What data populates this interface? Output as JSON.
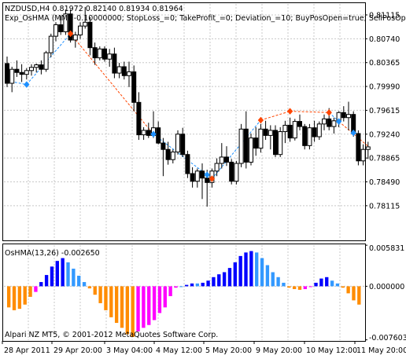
{
  "header": {
    "line1": "NZDUSD,H4  0.81972 0.82140 0.81934 0.81964",
    "line2": "Exp_OsHMA (MM=-0.10000000; StopLoss_=0; TakeProfit_=0; Deviation_=10; BuyPosOpen=true; SellPosOp"
  },
  "sub": {
    "title": "OsHMA(13,26) -0.002650"
  },
  "footer": {
    "copyright": "Alpari NZ MT5, © 2001-2012 MetaQuotes Software Corp."
  },
  "colors": {
    "bull": "#ffffff",
    "bear": "#000000",
    "grid": "#c8c8c8",
    "buy_arrow": "#1e90ff",
    "sell_arrow": "#ff4500",
    "trend_line": "#1e90ff",
    "trend_line_down": "#ff4500",
    "hist_orange": "#ff8c00",
    "hist_magenta": "#ff00ff",
    "hist_blue": "#0000ff",
    "hist_lightblue": "#3399ff"
  },
  "chart_data": [
    {
      "type": "candlestick",
      "ylim": [
        0.7757,
        0.813
      ],
      "y_ticks": [
        "0.81115",
        "0.80740",
        "0.80365",
        "0.79990",
        "0.79615",
        "0.79240",
        "0.78865",
        "0.78490",
        "0.78115"
      ],
      "y_tick_values": [
        0.81115,
        0.8074,
        0.80365,
        0.7999,
        0.79615,
        0.7924,
        0.78865,
        0.7849,
        0.78115
      ],
      "x_ticks": [
        "28 Apr 2011",
        "29 Apr 20:00",
        "3 May 04:00",
        "4 May 12:00",
        "5 May 20:00",
        "9 May 20:00",
        "10 May 12:00",
        "11 May 20:00"
      ],
      "candles": [
        {
          "o": 0.8035,
          "h": 0.8046,
          "l": 0.7998,
          "c": 0.8004
        },
        {
          "o": 0.8004,
          "h": 0.803,
          "l": 0.799,
          "c": 0.8026
        },
        {
          "o": 0.8026,
          "h": 0.804,
          "l": 0.8014,
          "c": 0.8021
        },
        {
          "o": 0.8021,
          "h": 0.8034,
          "l": 0.8006,
          "c": 0.8018
        },
        {
          "o": 0.8018,
          "h": 0.8028,
          "l": 0.801,
          "c": 0.8024
        },
        {
          "o": 0.8024,
          "h": 0.8034,
          "l": 0.8016,
          "c": 0.8029
        },
        {
          "o": 0.8029,
          "h": 0.8035,
          "l": 0.8021,
          "c": 0.8033
        },
        {
          "o": 0.8033,
          "h": 0.804,
          "l": 0.8018,
          "c": 0.8026
        },
        {
          "o": 0.8026,
          "h": 0.8055,
          "l": 0.8022,
          "c": 0.8052
        },
        {
          "o": 0.8052,
          "h": 0.8082,
          "l": 0.8045,
          "c": 0.8078
        },
        {
          "o": 0.8078,
          "h": 0.81,
          "l": 0.807,
          "c": 0.8096
        },
        {
          "o": 0.8096,
          "h": 0.811,
          "l": 0.808,
          "c": 0.8085
        },
        {
          "o": 0.8085,
          "h": 0.812,
          "l": 0.808,
          "c": 0.8113
        },
        {
          "o": 0.8113,
          "h": 0.812,
          "l": 0.8068,
          "c": 0.8072
        },
        {
          "o": 0.8072,
          "h": 0.8085,
          "l": 0.806,
          "c": 0.808
        },
        {
          "o": 0.808,
          "h": 0.81,
          "l": 0.8074,
          "c": 0.8094
        },
        {
          "o": 0.8094,
          "h": 0.8124,
          "l": 0.809,
          "c": 0.81
        },
        {
          "o": 0.81,
          "h": 0.8108,
          "l": 0.8048,
          "c": 0.806
        },
        {
          "o": 0.806,
          "h": 0.8068,
          "l": 0.8033,
          "c": 0.8044
        },
        {
          "o": 0.8044,
          "h": 0.8062,
          "l": 0.804,
          "c": 0.8058
        },
        {
          "o": 0.8058,
          "h": 0.8062,
          "l": 0.8038,
          "c": 0.8042
        },
        {
          "o": 0.8042,
          "h": 0.8058,
          "l": 0.803,
          "c": 0.805
        },
        {
          "o": 0.805,
          "h": 0.806,
          "l": 0.8012,
          "c": 0.802
        },
        {
          "o": 0.802,
          "h": 0.8036,
          "l": 0.8012,
          "c": 0.803
        },
        {
          "o": 0.803,
          "h": 0.8038,
          "l": 0.801,
          "c": 0.8016
        },
        {
          "o": 0.8016,
          "h": 0.8038,
          "l": 0.7998,
          "c": 0.8022
        },
        {
          "o": 0.8022,
          "h": 0.8032,
          "l": 0.796,
          "c": 0.7974
        },
        {
          "o": 0.7974,
          "h": 0.799,
          "l": 0.7915,
          "c": 0.7923
        },
        {
          "o": 0.7923,
          "h": 0.7935,
          "l": 0.7915,
          "c": 0.793
        },
        {
          "o": 0.793,
          "h": 0.7942,
          "l": 0.7918,
          "c": 0.7922
        },
        {
          "o": 0.7922,
          "h": 0.796,
          "l": 0.7918,
          "c": 0.7934
        },
        {
          "o": 0.7934,
          "h": 0.7944,
          "l": 0.7908,
          "c": 0.791
        },
        {
          "o": 0.791,
          "h": 0.7918,
          "l": 0.7858,
          "c": 0.79
        },
        {
          "o": 0.79,
          "h": 0.7912,
          "l": 0.7876,
          "c": 0.7884
        },
        {
          "o": 0.7884,
          "h": 0.79,
          "l": 0.7878,
          "c": 0.7896
        },
        {
          "o": 0.7896,
          "h": 0.793,
          "l": 0.7892,
          "c": 0.7924
        },
        {
          "o": 0.7924,
          "h": 0.7934,
          "l": 0.7888,
          "c": 0.7892
        },
        {
          "o": 0.7892,
          "h": 0.7898,
          "l": 0.7855,
          "c": 0.7862
        },
        {
          "o": 0.7862,
          "h": 0.7872,
          "l": 0.784,
          "c": 0.785
        },
        {
          "o": 0.785,
          "h": 0.787,
          "l": 0.784,
          "c": 0.7866
        },
        {
          "o": 0.7866,
          "h": 0.7878,
          "l": 0.7822,
          "c": 0.7855
        },
        {
          "o": 0.7855,
          "h": 0.7868,
          "l": 0.781,
          "c": 0.7848
        },
        {
          "o": 0.7848,
          "h": 0.787,
          "l": 0.784,
          "c": 0.7866
        },
        {
          "o": 0.7866,
          "h": 0.7886,
          "l": 0.7858,
          "c": 0.7878
        },
        {
          "o": 0.7878,
          "h": 0.791,
          "l": 0.787,
          "c": 0.7888
        },
        {
          "o": 0.7888,
          "h": 0.7905,
          "l": 0.7874,
          "c": 0.788
        },
        {
          "o": 0.788,
          "h": 0.7885,
          "l": 0.7845,
          "c": 0.785
        },
        {
          "o": 0.785,
          "h": 0.7882,
          "l": 0.7845,
          "c": 0.7878
        },
        {
          "o": 0.7878,
          "h": 0.794,
          "l": 0.7872,
          "c": 0.7932
        },
        {
          "o": 0.7932,
          "h": 0.796,
          "l": 0.787,
          "c": 0.788
        },
        {
          "o": 0.788,
          "h": 0.7925,
          "l": 0.7875,
          "c": 0.7918
        },
        {
          "o": 0.7918,
          "h": 0.7935,
          "l": 0.789,
          "c": 0.7902
        },
        {
          "o": 0.7902,
          "h": 0.794,
          "l": 0.7895,
          "c": 0.7932
        },
        {
          "o": 0.7932,
          "h": 0.7945,
          "l": 0.7915,
          "c": 0.7922
        },
        {
          "o": 0.7922,
          "h": 0.7938,
          "l": 0.79,
          "c": 0.793
        },
        {
          "o": 0.793,
          "h": 0.7938,
          "l": 0.7888,
          "c": 0.7892
        },
        {
          "o": 0.7892,
          "h": 0.7935,
          "l": 0.7888,
          "c": 0.7928
        },
        {
          "o": 0.7928,
          "h": 0.7945,
          "l": 0.791,
          "c": 0.7938
        },
        {
          "o": 0.7938,
          "h": 0.795,
          "l": 0.7912,
          "c": 0.7918
        },
        {
          "o": 0.7918,
          "h": 0.7948,
          "l": 0.7914,
          "c": 0.7944
        },
        {
          "o": 0.7944,
          "h": 0.7955,
          "l": 0.793,
          "c": 0.7936
        },
        {
          "o": 0.7936,
          "h": 0.794,
          "l": 0.79,
          "c": 0.7906
        },
        {
          "o": 0.7906,
          "h": 0.794,
          "l": 0.79,
          "c": 0.7934
        },
        {
          "o": 0.7934,
          "h": 0.7945,
          "l": 0.7912,
          "c": 0.792
        },
        {
          "o": 0.792,
          "h": 0.7944,
          "l": 0.7915,
          "c": 0.794
        },
        {
          "o": 0.794,
          "h": 0.7955,
          "l": 0.793,
          "c": 0.7948
        },
        {
          "o": 0.7948,
          "h": 0.7965,
          "l": 0.793,
          "c": 0.7936
        },
        {
          "o": 0.7936,
          "h": 0.795,
          "l": 0.7925,
          "c": 0.7945
        },
        {
          "o": 0.7945,
          "h": 0.796,
          "l": 0.7935,
          "c": 0.7958
        },
        {
          "o": 0.7958,
          "h": 0.7968,
          "l": 0.7944,
          "c": 0.795
        },
        {
          "o": 0.795,
          "h": 0.7975,
          "l": 0.793,
          "c": 0.7955
        },
        {
          "o": 0.7955,
          "h": 0.796,
          "l": 0.792,
          "c": 0.7925
        },
        {
          "o": 0.7925,
          "h": 0.793,
          "l": 0.7875,
          "c": 0.7882
        },
        {
          "o": 0.7882,
          "h": 0.7908,
          "l": 0.7875,
          "c": 0.79
        },
        {
          "o": 0.79,
          "h": 0.7912,
          "l": 0.7885,
          "c": 0.7904
        }
      ],
      "buy_arrows": [
        {
          "index": 4,
          "price": 0.8002
        },
        {
          "index": 30,
          "price": 0.7924
        },
        {
          "index": 41,
          "price": 0.786
        },
        {
          "index": 68,
          "price": 0.7944
        },
        {
          "index": 71,
          "price": 0.7926
        }
      ],
      "sell_arrows": [
        {
          "index": 13,
          "price": 0.8082
        },
        {
          "index": 42,
          "price": 0.7854
        },
        {
          "index": 52,
          "price": 0.7946
        },
        {
          "index": 58,
          "price": 0.796
        },
        {
          "index": 66,
          "price": 0.7958
        }
      ],
      "trend_segments": [
        {
          "from": [
            0,
            0.8008
          ],
          "to": [
            4,
            0.8002
          ],
          "dir": "buy"
        },
        {
          "from": [
            4,
            0.8002
          ],
          "to": [
            13,
            0.8082
          ],
          "dir": "buy"
        },
        {
          "from": [
            13,
            0.8082
          ],
          "to": [
            30,
            0.7924
          ],
          "dir": "sell"
        },
        {
          "from": [
            30,
            0.7924
          ],
          "to": [
            41,
            0.786
          ],
          "dir": "buy"
        },
        {
          "from": [
            41,
            0.786
          ],
          "to": [
            42,
            0.7854
          ],
          "dir": "sell"
        },
        {
          "from": [
            42,
            0.7854
          ],
          "to": [
            52,
            0.7946
          ],
          "dir": "buy"
        },
        {
          "from": [
            52,
            0.7946
          ],
          "to": [
            58,
            0.796
          ],
          "dir": "sell"
        },
        {
          "from": [
            58,
            0.796
          ],
          "to": [
            66,
            0.7958
          ],
          "dir": "sell"
        },
        {
          "from": [
            66,
            0.7958
          ],
          "to": [
            68,
            0.7944
          ],
          "dir": "buy"
        },
        {
          "from": [
            68,
            0.7944
          ],
          "to": [
            74,
            0.7905
          ],
          "dir": "sell"
        }
      ]
    },
    {
      "type": "bar",
      "title": "OsHMA(13,26) -0.002650",
      "ylim": [
        -0.00776,
        0.00596
      ],
      "y_ticks": [
        "0.005831",
        "0.000000",
        "-0.007603"
      ],
      "y_tick_values": [
        0.005831,
        0.0,
        -0.007603
      ],
      "values": [
        -0.003,
        -0.0034,
        -0.0032,
        -0.0026,
        -0.0015,
        -0.0008,
        0.0006,
        0.0016,
        0.0028,
        0.0036,
        0.004,
        0.0034,
        0.0025,
        0.0015,
        0.0006,
        -0.0003,
        -0.0012,
        -0.0024,
        -0.0034,
        -0.0044,
        -0.0052,
        -0.0059,
        -0.0068,
        -0.0072,
        -0.0064,
        -0.0059,
        -0.0055,
        -0.0048,
        -0.0038,
        -0.003,
        -0.0014,
        -0.0002,
        0.0,
        0.0002,
        0.0004,
        0.0004,
        0.0005,
        0.0008,
        0.0013,
        0.0017,
        0.002,
        0.0026,
        0.0034,
        0.0043,
        0.0048,
        0.005,
        0.0048,
        0.004,
        0.003,
        0.002,
        0.0013,
        0.0005,
        -0.0002,
        -0.0004,
        -0.0005,
        -0.0004,
        0.0,
        0.0005,
        0.0011,
        0.0013,
        0.0008,
        0.0004,
        -0.0002,
        -0.001,
        -0.002,
        -0.0026
      ],
      "colors": [
        "orange",
        "orange",
        "orange",
        "orange",
        "orange",
        "magenta",
        "blue",
        "blue",
        "blue",
        "blue",
        "blue",
        "lightblue",
        "lightblue",
        "lightblue",
        "lightblue",
        "orange",
        "orange",
        "orange",
        "orange",
        "orange",
        "orange",
        "orange",
        "orange",
        "orange",
        "magenta",
        "magenta",
        "magenta",
        "magenta",
        "magenta",
        "magenta",
        "magenta",
        "magenta",
        "lightblue",
        "blue",
        "blue",
        "lightblue",
        "blue",
        "blue",
        "blue",
        "blue",
        "blue",
        "blue",
        "blue",
        "blue",
        "blue",
        "blue",
        "lightblue",
        "lightblue",
        "lightblue",
        "lightblue",
        "lightblue",
        "lightblue",
        "orange",
        "orange",
        "orange",
        "magenta",
        "magenta",
        "blue",
        "blue",
        "blue",
        "lightblue",
        "lightblue",
        "orange",
        "orange",
        "orange",
        "orange"
      ]
    }
  ]
}
